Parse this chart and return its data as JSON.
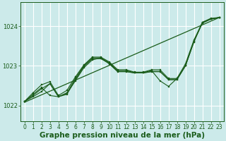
{
  "background_color": "#cceaea",
  "grid_color": "#b8d8d8",
  "line_color": "#1a5c1a",
  "xlabel": "Graphe pression niveau de la mer (hPa)",
  "xlabel_fontsize": 7.5,
  "tick_fontsize": 6,
  "ylim": [
    1021.6,
    1024.6
  ],
  "xlim": [
    -0.5,
    23.5
  ],
  "yticks": [
    1022,
    1023,
    1024
  ],
  "xticks": [
    0,
    1,
    2,
    3,
    4,
    5,
    6,
    7,
    8,
    9,
    10,
    11,
    12,
    13,
    14,
    15,
    16,
    17,
    18,
    19,
    20,
    21,
    22,
    23
  ],
  "series": [
    [
      1022.1,
      1022.25,
      1022.42,
      1022.55,
      1022.22,
      1022.28,
      1022.65,
      1022.98,
      1023.18,
      1023.18,
      1023.06,
      1022.86,
      1022.86,
      1022.82,
      1022.82,
      1022.86,
      1022.86,
      1022.65,
      1022.65,
      1023.0,
      1023.62,
      1024.08,
      1024.18,
      1024.22
    ],
    [
      1022.1,
      1022.32,
      1022.52,
      1022.6,
      1022.25,
      1022.38,
      1022.72,
      1023.02,
      1023.22,
      1023.22,
      1023.1,
      1022.9,
      1022.9,
      1022.84,
      1022.84,
      1022.9,
      1022.9,
      1022.68,
      1022.68,
      1023.05,
      1023.65,
      1024.1,
      1024.2,
      1024.22
    ],
    [
      1022.1,
      1022.22,
      1022.35,
      1022.55,
      1022.22,
      1022.3,
      1022.62,
      1022.95,
      1023.15,
      1023.2,
      1023.05,
      1022.85,
      1022.85,
      1022.82,
      1022.82,
      1022.85,
      1022.85,
      1022.65,
      1022.65,
      1023.0,
      1023.6,
      1024.1,
      1024.18,
      1024.22
    ],
    [
      1022.1,
      1022.28,
      1022.45,
      1022.25,
      1022.22,
      1022.32,
      1022.68,
      1023.0,
      1023.2,
      1023.2,
      1023.08,
      1022.88,
      1022.88,
      1022.83,
      1022.83,
      1022.88,
      1022.62,
      1022.48,
      1022.68,
      1023.0,
      1023.62,
      1024.08,
      1024.18,
      1024.22
    ]
  ]
}
